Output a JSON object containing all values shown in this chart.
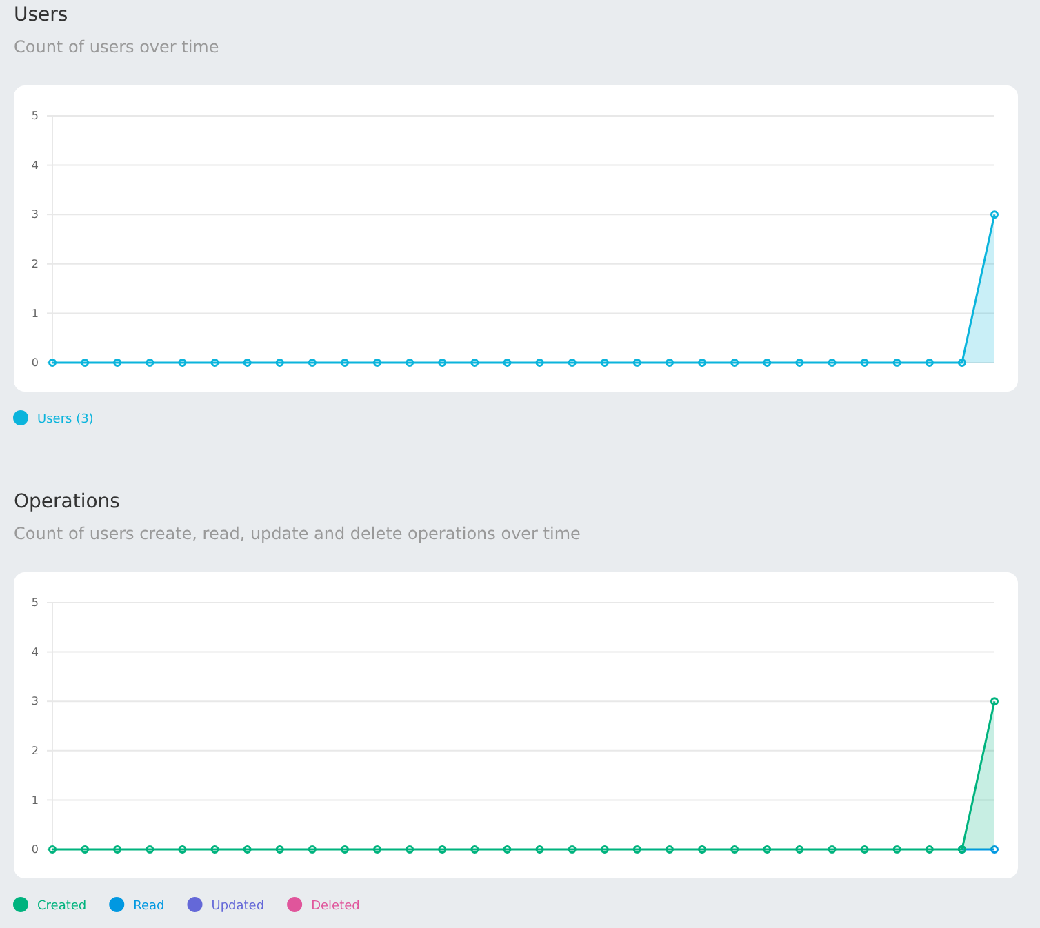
{
  "chart_data": [
    {
      "type": "area",
      "title": "Users",
      "subtitle": "Count of users over time",
      "categories": [
        null,
        null,
        null,
        null,
        null,
        null,
        null,
        null,
        null,
        null,
        null,
        null,
        null,
        null,
        null,
        null,
        null,
        null,
        null,
        null,
        null,
        null,
        null,
        null,
        null,
        null,
        null,
        null,
        null,
        null
      ],
      "series": [
        {
          "name": "Users (3)",
          "color": "#0bb4dc",
          "values": [
            0,
            0,
            0,
            0,
            0,
            0,
            0,
            0,
            0,
            0,
            0,
            0,
            0,
            0,
            0,
            0,
            0,
            0,
            0,
            0,
            0,
            0,
            0,
            0,
            0,
            0,
            0,
            0,
            0,
            3
          ]
        }
      ],
      "ylim": [
        0,
        5
      ],
      "yticks": [
        0,
        1,
        2,
        3,
        4,
        5
      ],
      "grid": "y",
      "legend": "bottom left",
      "marker": "circle",
      "tick_labels": "y"
    },
    {
      "type": "area",
      "title": "Operations",
      "subtitle": "Count of users create, read, update and delete operations over time",
      "categories": [
        null,
        null,
        null,
        null,
        null,
        null,
        null,
        null,
        null,
        null,
        null,
        null,
        null,
        null,
        null,
        null,
        null,
        null,
        null,
        null,
        null,
        null,
        null,
        null,
        null,
        null,
        null,
        null,
        null,
        null
      ],
      "series": [
        {
          "name": "Created",
          "color": "#00b37e",
          "values": [
            0,
            0,
            0,
            0,
            0,
            0,
            0,
            0,
            0,
            0,
            0,
            0,
            0,
            0,
            0,
            0,
            0,
            0,
            0,
            0,
            0,
            0,
            0,
            0,
            0,
            0,
            0,
            0,
            0,
            3
          ]
        },
        {
          "name": "Read",
          "type": "line",
          "color": "#0198e1",
          "values": [
            null,
            null,
            null,
            null,
            null,
            null,
            null,
            null,
            null,
            null,
            null,
            null,
            null,
            null,
            null,
            null,
            null,
            null,
            null,
            null,
            null,
            null,
            null,
            null,
            null,
            null,
            null,
            null,
            0,
            0
          ]
        },
        {
          "name": "Updated",
          "type": "line",
          "color": "#6468d8",
          "values": [
            null,
            null,
            null,
            null,
            null,
            null,
            null,
            null,
            null,
            null,
            null,
            null,
            null,
            null,
            null,
            null,
            null,
            null,
            null,
            null,
            null,
            null,
            null,
            null,
            null,
            null,
            null,
            null,
            null,
            null
          ]
        },
        {
          "name": "Deleted",
          "type": "line",
          "color": "#e0559b",
          "values": [
            null,
            null,
            null,
            null,
            null,
            null,
            null,
            null,
            null,
            null,
            null,
            null,
            null,
            null,
            null,
            null,
            null,
            null,
            null,
            null,
            null,
            null,
            null,
            null,
            null,
            null,
            null,
            null,
            null,
            null
          ]
        }
      ],
      "ylim": [
        0,
        5
      ],
      "yticks": [
        0,
        1,
        2,
        3,
        4,
        5
      ],
      "grid": "y",
      "legend": "bottom left",
      "marker": "circle",
      "tick_labels": "y"
    }
  ]
}
